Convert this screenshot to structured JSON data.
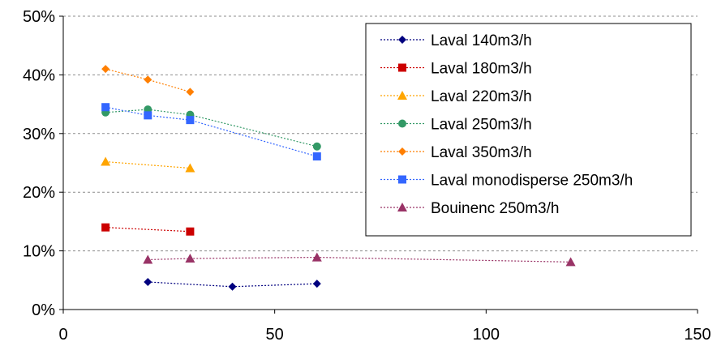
{
  "chart_data": {
    "type": "scatter",
    "title": "",
    "xlabel": "",
    "ylabel": "",
    "xlim": [
      0,
      150
    ],
    "ylim": [
      0,
      50
    ],
    "x_ticks": [
      {
        "value": 0,
        "label": "0"
      },
      {
        "value": 50,
        "label": "50"
      },
      {
        "value": 100,
        "label": "100"
      },
      {
        "value": 150,
        "label": "150"
      }
    ],
    "y_ticks": [
      {
        "value": 0,
        "label": "0%"
      },
      {
        "value": 10,
        "label": "10%"
      },
      {
        "value": 20,
        "label": "20%"
      },
      {
        "value": 30,
        "label": "30%"
      },
      {
        "value": 40,
        "label": "40%"
      },
      {
        "value": 50,
        "label": "50%"
      }
    ],
    "grid": "horizontal dashed",
    "legend_position": "top-right",
    "series": [
      {
        "name": "Laval 140m3/h",
        "color": "#00007f",
        "marker": "diamond",
        "points": [
          [
            20,
            4.7
          ],
          [
            40,
            3.9
          ],
          [
            60,
            4.4
          ]
        ]
      },
      {
        "name": "Laval 180m3/h",
        "color": "#cc0000",
        "marker": "square",
        "points": [
          [
            10,
            14.0
          ],
          [
            30,
            13.3
          ]
        ]
      },
      {
        "name": "Laval 220m3/h",
        "color": "#ffa500",
        "marker": "triangle",
        "points": [
          [
            10,
            25.2
          ],
          [
            30,
            24.1
          ]
        ]
      },
      {
        "name": "Laval 250m3/h",
        "color": "#339966",
        "marker": "circle",
        "points": [
          [
            10,
            33.6
          ],
          [
            20,
            34.1
          ],
          [
            30,
            33.2
          ],
          [
            60,
            27.8
          ]
        ]
      },
      {
        "name": "Laval 350m3/h",
        "color": "#ff7f00",
        "marker": "diamond",
        "points": [
          [
            10,
            41.0
          ],
          [
            20,
            39.2
          ],
          [
            30,
            37.1
          ]
        ]
      },
      {
        "name": "Laval monodisperse 250m3/h",
        "color": "#3366ff",
        "marker": "square",
        "points": [
          [
            10,
            34.5
          ],
          [
            20,
            33.1
          ],
          [
            30,
            32.3
          ],
          [
            60,
            26.1
          ]
        ]
      },
      {
        "name": "Bouinenc 250m3/h",
        "color": "#993366",
        "marker": "triangle",
        "points": [
          [
            20,
            8.5
          ],
          [
            30,
            8.7
          ],
          [
            60,
            8.9
          ],
          [
            120,
            8.1
          ]
        ]
      }
    ]
  }
}
